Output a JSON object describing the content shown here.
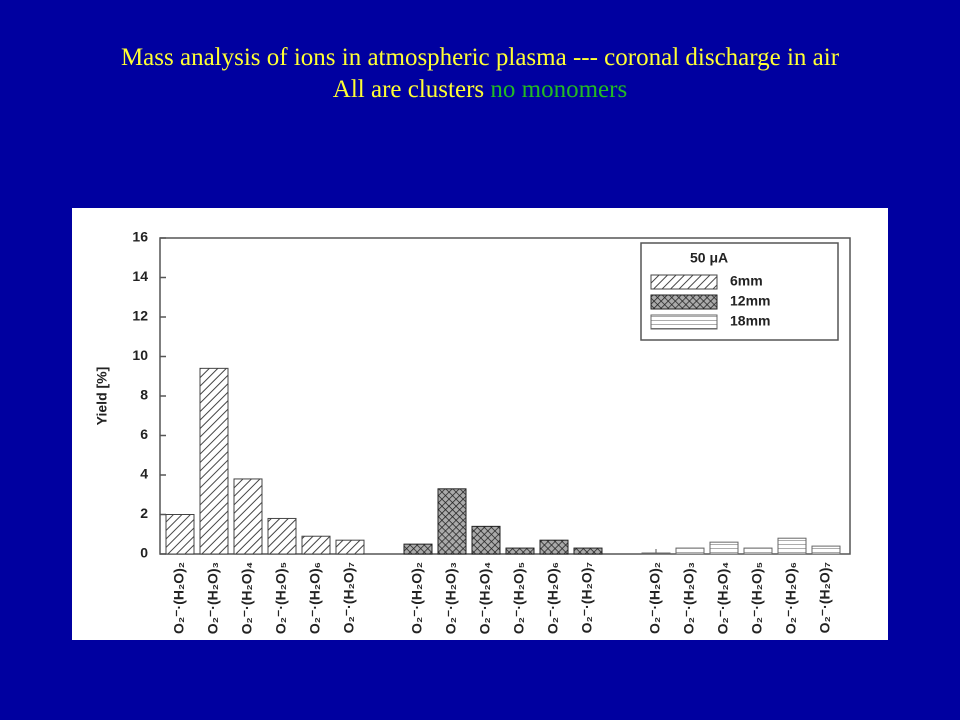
{
  "slide": {
    "title": "Mass analysis of ions in atmospheric plasma --- coronal discharge in air All are clusters",
    "title_highlight": "no monomers"
  },
  "chart_data": {
    "type": "bar",
    "y_label": "Yield [%]",
    "legend_title": "50 μA",
    "categories": [
      "O₂⁻·(H₂O)₂",
      "O₂⁻·(H₂O)₃",
      "O₂⁻·(H₂O)₄",
      "O₂⁻·(H₂O)₅",
      "O₂⁻·(H₂O)₆",
      "O₂⁻·(H₂O)₇",
      "O₂⁻·(H₂O)₂",
      "O₂⁻·(H₂O)₃",
      "O₂⁻·(H₂O)₄",
      "O₂⁻·(H₂O)₅",
      "O₂⁻·(H₂O)₆",
      "O₂⁻·(H₂O)₇",
      "O₂⁻·(H₂O)₂",
      "O₂⁻·(H₂O)₃",
      "O₂⁻·(H₂O)₄",
      "O₂⁻·(H₂O)₅",
      "O₂⁻·(H₂O)₆",
      "O₂⁻·(H₂O)₇"
    ],
    "series": [
      {
        "name": "6mm",
        "color": "#444444",
        "values": [
          2.0,
          9.4,
          3.8,
          1.8,
          0.9,
          0.7,
          null,
          null,
          null,
          null,
          null,
          null,
          null,
          null,
          null,
          null,
          null,
          null
        ]
      },
      {
        "name": "12mm",
        "color": "#222222",
        "values": [
          null,
          null,
          null,
          null,
          null,
          null,
          0.5,
          3.3,
          1.4,
          0.3,
          0.7,
          0.3,
          null,
          null,
          null,
          null,
          null,
          null
        ]
      },
      {
        "name": "18mm",
        "color": "#666666",
        "values": [
          null,
          null,
          null,
          null,
          null,
          null,
          null,
          null,
          null,
          null,
          null,
          null,
          0.05,
          0.3,
          0.6,
          0.3,
          0.8,
          0.4
        ]
      }
    ],
    "ylim": [
      0,
      16
    ],
    "yticks": [
      0,
      2,
      4,
      6,
      8,
      10,
      12,
      14,
      16
    ]
  }
}
